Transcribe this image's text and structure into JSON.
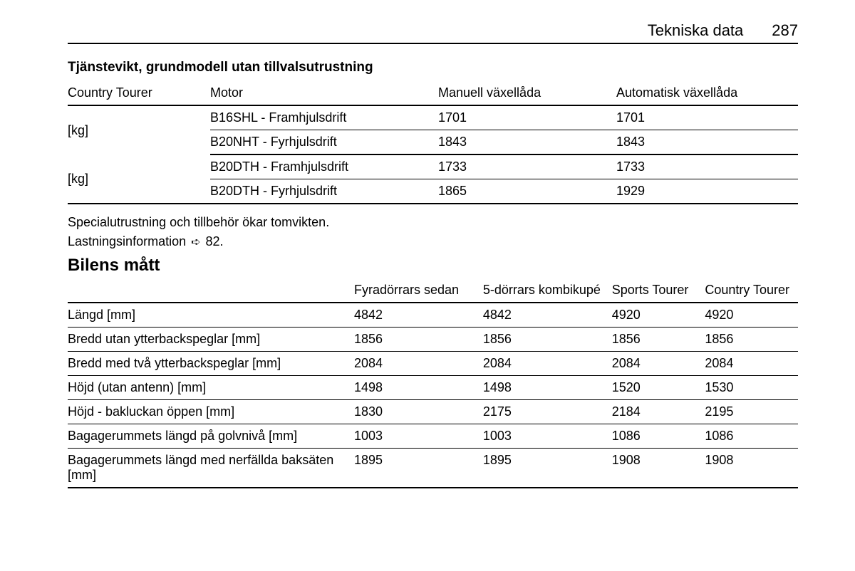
{
  "header": {
    "title": "Tekniska data",
    "page": "287"
  },
  "weight": {
    "title": "Tjänstevikt, grundmodell utan tillvalsutrustning",
    "columns": {
      "model": "Country Tourer",
      "motor": "Motor",
      "manual": "Manuell växellåda",
      "auto": "Automatisk växellåda"
    },
    "groups": [
      {
        "label": "[kg]",
        "rows": [
          {
            "motor": "B16SHL - Framhjulsdrift",
            "manual": "1701",
            "auto": "1701"
          },
          {
            "motor": "B20NHT - Fyrhjulsdrift",
            "manual": "1843",
            "auto": "1843"
          }
        ]
      },
      {
        "label": "[kg]",
        "rows": [
          {
            "motor": "B20DTH - Framhjulsdrift",
            "manual": "1733",
            "auto": "1733"
          },
          {
            "motor": "B20DTH - Fyrhjulsdrift",
            "manual": "1865",
            "auto": "1929"
          }
        ]
      }
    ],
    "note1": "Specialutrustning och tillbehör ökar tomvikten.",
    "note2a": "Lastningsinformation ",
    "note2b": "82."
  },
  "dims": {
    "title": "Bilens mått",
    "columns": [
      "",
      "Fyradörrars sedan",
      "5-dörrars kombikupé",
      "Sports Tourer",
      "Country Tourer"
    ],
    "rows": [
      {
        "label": "Längd [mm]",
        "v": [
          "4842",
          "4842",
          "4920",
          "4920"
        ]
      },
      {
        "label": "Bredd utan ytterbackspeglar [mm]",
        "v": [
          "1856",
          "1856",
          "1856",
          "1856"
        ]
      },
      {
        "label": "Bredd med två ytterbackspeglar [mm]",
        "v": [
          "2084",
          "2084",
          "2084",
          "2084"
        ]
      },
      {
        "label": "Höjd (utan antenn) [mm]",
        "v": [
          "1498",
          "1498",
          "1520",
          "1530"
        ]
      },
      {
        "label": "Höjd - bakluckan öppen [mm]",
        "v": [
          "1830",
          "2175",
          "2184",
          "2195"
        ]
      },
      {
        "label": "Bagagerummets längd på golvnivå [mm]",
        "v": [
          "1003",
          "1003",
          "1086",
          "1086"
        ]
      },
      {
        "label": "Bagagerummets längd med nerfällda baksäten [mm]",
        "v": [
          "1895",
          "1895",
          "1908",
          "1908"
        ]
      }
    ]
  }
}
